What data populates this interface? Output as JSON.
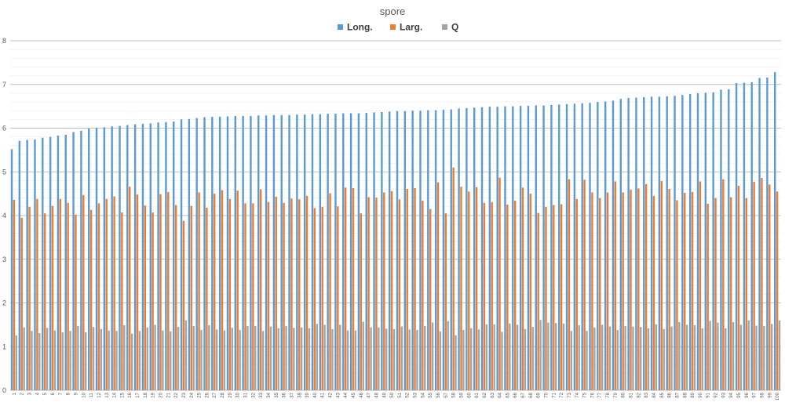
{
  "chart_data": {
    "type": "bar",
    "title": "spore",
    "xlabel": "",
    "ylabel": "",
    "ylim": [
      0,
      8
    ],
    "y_ticks": [
      "0",
      "1",
      "2",
      "3",
      "4",
      "5",
      "6",
      "7",
      "8"
    ],
    "grid": true,
    "legend_position": "top",
    "categories": [
      "1",
      "2",
      "3",
      "4",
      "5",
      "6",
      "7",
      "8",
      "9",
      "10",
      "11",
      "12",
      "13",
      "14",
      "15",
      "16",
      "17",
      "18",
      "19",
      "20",
      "21",
      "22",
      "23",
      "24",
      "25",
      "26",
      "27",
      "28",
      "29",
      "30",
      "31",
      "32",
      "33",
      "34",
      "35",
      "36",
      "37",
      "38",
      "39",
      "40",
      "41",
      "42",
      "43",
      "44",
      "45",
      "46",
      "47",
      "48",
      "49",
      "50",
      "51",
      "52",
      "53",
      "54",
      "55",
      "56",
      "57",
      "58",
      "59",
      "60",
      "61",
      "62",
      "63",
      "64",
      "65",
      "66",
      "67",
      "68",
      "69",
      "70",
      "71",
      "72",
      "73",
      "74",
      "75",
      "76",
      "77",
      "78",
      "79",
      "80",
      "81",
      "82",
      "83",
      "84",
      "85",
      "86",
      "87",
      "88",
      "89",
      "90",
      "91",
      "92",
      "93",
      "94",
      "95",
      "96",
      "97",
      "98",
      "99",
      "100"
    ],
    "series": [
      {
        "name": "Long.",
        "color": "#5B9BD5",
        "values": [
          5.52,
          5.71,
          5.73,
          5.74,
          5.78,
          5.8,
          5.83,
          5.85,
          5.91,
          5.94,
          5.99,
          6.01,
          6.02,
          6.04,
          6.05,
          6.07,
          6.09,
          6.1,
          6.11,
          6.13,
          6.14,
          6.15,
          6.2,
          6.21,
          6.23,
          6.25,
          6.26,
          6.26,
          6.27,
          6.28,
          6.28,
          6.28,
          6.29,
          6.29,
          6.3,
          6.3,
          6.3,
          6.31,
          6.31,
          6.32,
          6.32,
          6.33,
          6.33,
          6.34,
          6.34,
          6.34,
          6.35,
          6.36,
          6.37,
          6.38,
          6.39,
          6.39,
          6.4,
          6.4,
          6.41,
          6.41,
          6.42,
          6.43,
          6.45,
          6.46,
          6.47,
          6.48,
          6.49,
          6.49,
          6.5,
          6.5,
          6.51,
          6.51,
          6.52,
          6.52,
          6.53,
          6.54,
          6.55,
          6.56,
          6.57,
          6.58,
          6.6,
          6.61,
          6.63,
          6.67,
          6.69,
          6.7,
          6.71,
          6.72,
          6.72,
          6.73,
          6.74,
          6.76,
          6.78,
          6.8,
          6.81,
          6.82,
          6.88,
          6.89,
          7.03,
          7.04,
          7.05,
          7.15,
          7.16,
          7.28
        ]
      },
      {
        "name": "Larg.",
        "color": "#ED7D31",
        "values": [
          4.36,
          3.95,
          4.2,
          4.38,
          4.05,
          4.22,
          4.38,
          4.29,
          4.02,
          4.47,
          4.13,
          4.28,
          4.38,
          4.44,
          4.07,
          4.66,
          4.48,
          4.23,
          4.07,
          4.49,
          4.54,
          4.24,
          3.88,
          4.22,
          4.53,
          4.18,
          4.5,
          4.58,
          4.38,
          4.57,
          4.28,
          4.28,
          4.6,
          4.31,
          4.43,
          4.29,
          4.39,
          4.37,
          4.45,
          4.17,
          4.2,
          4.51,
          4.21,
          4.64,
          4.63,
          4.05,
          4.42,
          4.41,
          4.53,
          4.56,
          4.37,
          4.61,
          4.63,
          4.34,
          4.15,
          4.76,
          4.05,
          5.1,
          4.66,
          4.55,
          4.65,
          4.29,
          4.31,
          4.87,
          4.25,
          4.34,
          4.64,
          4.5,
          4.06,
          4.2,
          4.24,
          4.26,
          4.83,
          4.38,
          4.82,
          4.53,
          4.4,
          4.53,
          4.78,
          4.53,
          4.59,
          4.62,
          4.72,
          4.45,
          4.79,
          4.61,
          4.35,
          4.52,
          4.54,
          4.78,
          4.27,
          4.4,
          4.83,
          4.42,
          4.68,
          4.4,
          4.77,
          4.86,
          4.71,
          4.55
        ]
      },
      {
        "name": "Q",
        "color": "#A5A5A5",
        "values": [
          1.26,
          1.44,
          1.36,
          1.31,
          1.43,
          1.37,
          1.33,
          1.36,
          1.47,
          1.33,
          1.45,
          1.4,
          1.37,
          1.36,
          1.49,
          1.3,
          1.36,
          1.44,
          1.5,
          1.37,
          1.35,
          1.45,
          1.6,
          1.47,
          1.38,
          1.49,
          1.39,
          1.37,
          1.43,
          1.38,
          1.47,
          1.47,
          1.36,
          1.46,
          1.42,
          1.47,
          1.43,
          1.44,
          1.42,
          1.52,
          1.5,
          1.4,
          1.5,
          1.37,
          1.37,
          1.57,
          1.44,
          1.44,
          1.41,
          1.4,
          1.46,
          1.39,
          1.38,
          1.47,
          1.55,
          1.35,
          1.58,
          1.26,
          1.38,
          1.42,
          1.39,
          1.51,
          1.51,
          1.34,
          1.53,
          1.5,
          1.4,
          1.45,
          1.61,
          1.55,
          1.54,
          1.53,
          1.36,
          1.49,
          1.36,
          1.44,
          1.5,
          1.46,
          1.38,
          1.47,
          1.46,
          1.45,
          1.42,
          1.51,
          1.4,
          1.46,
          1.56,
          1.5,
          1.49,
          1.42,
          1.59,
          1.55,
          1.42,
          1.56,
          1.5,
          1.6,
          1.48,
          1.47,
          1.52,
          1.6
        ]
      }
    ]
  }
}
